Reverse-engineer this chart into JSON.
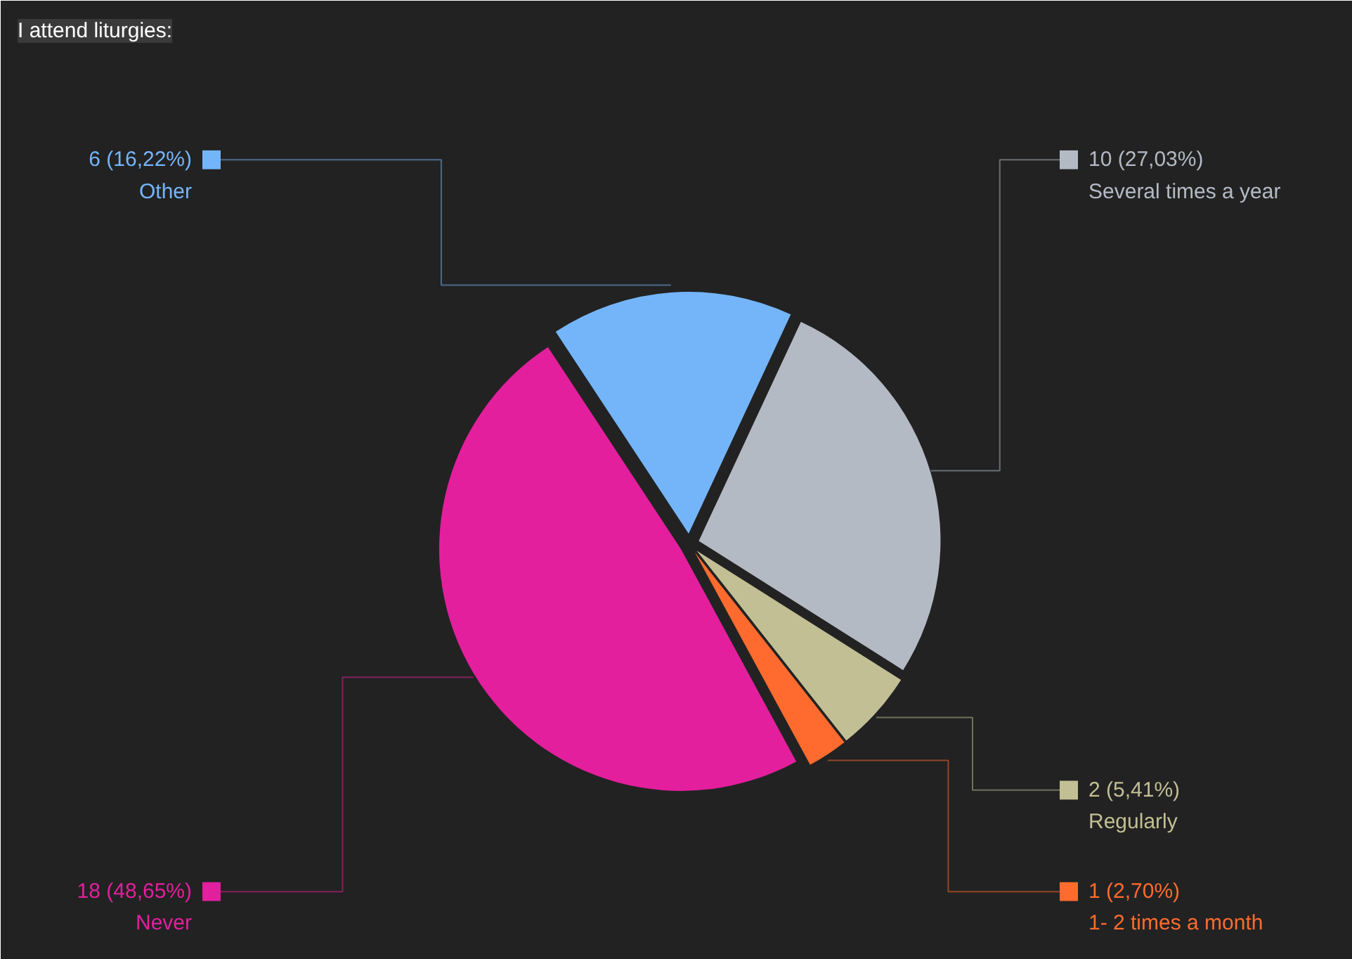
{
  "chart_data": {
    "type": "pie",
    "title": "I attend liturgies:",
    "categories": [
      "Several times a year",
      "Regularly",
      "1- 2 times a month",
      "Never",
      "Other"
    ],
    "values": [
      10,
      2,
      1,
      18,
      6
    ],
    "colors": [
      "#b4bac4",
      "#c2bf95",
      "#ff6b2e",
      "#e31f9e",
      "#74b5fa"
    ],
    "value_labels": [
      "10 (27,03%)",
      "2 (5,41%)",
      "1 (2,70%)",
      "18 (48,65%)",
      "6 (16,22%)"
    ],
    "legend": "right"
  }
}
